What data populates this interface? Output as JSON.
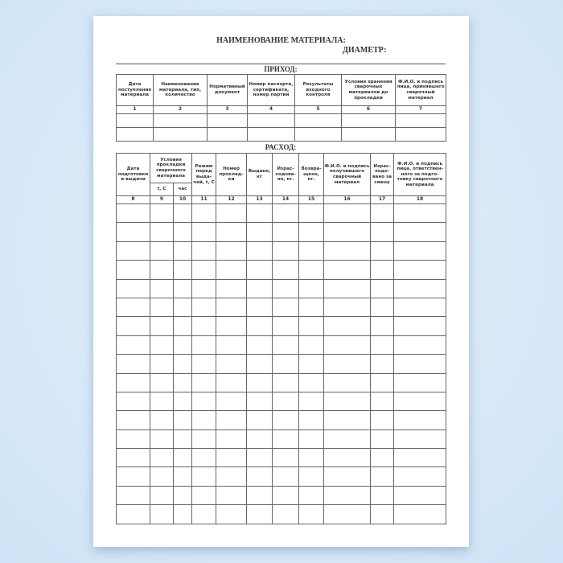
{
  "title": "НАИМЕНОВАНИЕ МАТЕРИАЛА:",
  "diameter_label": "ДИАМЕТР:",
  "income": {
    "heading": "ПРИХОД:",
    "columns": [
      "Дата поступления материала",
      "Наименование материала, тип, количество",
      "Нормативный документ",
      "Номер паспорта, сертификата, номер партии",
      "Результаты входного контроля",
      "Условия хранения сварочных материалов до прокладки",
      "Ф.И.О. и подпись лица, принявшего сварочный материал"
    ],
    "numbers": [
      "1",
      "2",
      "3",
      "4",
      "5",
      "6",
      "7"
    ],
    "empty_rows": 2
  },
  "expense": {
    "heading": "РАСХОД:",
    "col_date": "Дата подготовки и выдачи",
    "col_conditions": "Условия прокладки сварочного материала",
    "sub_t": "t, C",
    "sub_hours": "час",
    "col_mode": "Режим перед выда-чей, t, C",
    "col_number": "Номер проклад-ки",
    "col_issued": "Выдано, кг",
    "col_used": "Израс-ходова-но, кг.",
    "col_returned": "Возвра-щено, кг.",
    "col_receiver": "Ф.И.О. и подпись получившего сварочный материал",
    "col_used_shift": "Израс-ходо-вано за смену",
    "col_responsible": "Ф.И.О. и подпись лица, ответствен-ного за подго-товку сварочного материала",
    "numbers": [
      "8",
      "9",
      "10",
      "11",
      "12",
      "13",
      "14",
      "15",
      "16",
      "17",
      "18"
    ],
    "empty_rows": 17
  }
}
